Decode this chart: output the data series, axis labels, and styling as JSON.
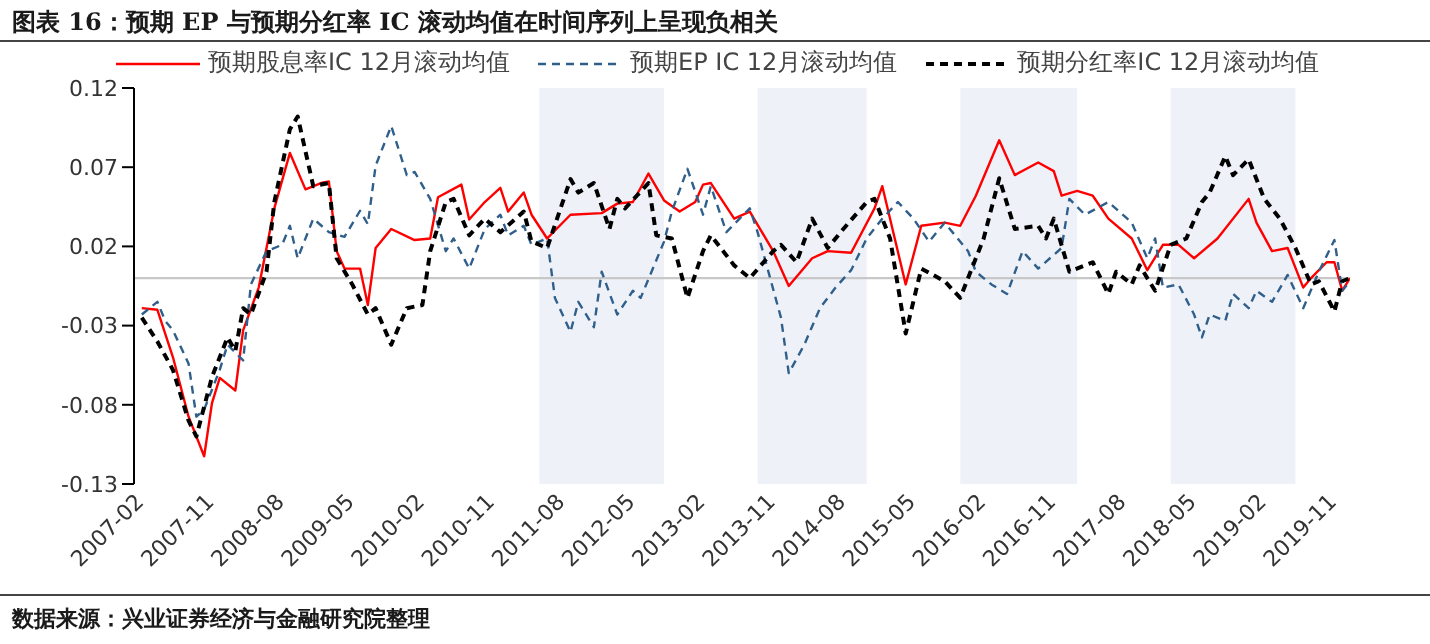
{
  "chart_data": {
    "type": "line",
    "title": "图表 16：预期 EP 与预期分红率 IC 滚动均值在时间序列上呈现负相关",
    "annotations": [
      "数据来源：兴业证券经济与金融研究院整理"
    ],
    "xlim": [
      "2007-02",
      "2020-02"
    ],
    "xticks": [
      "2007-02",
      "2007-11",
      "2008-08",
      "2009-05",
      "2010-02",
      "2010-11",
      "2011-08",
      "2012-05",
      "2013-02",
      "2013-11",
      "2014-08",
      "2015-05",
      "2016-02",
      "2016-11",
      "2017-08",
      "2018-05",
      "2019-02",
      "2019-11"
    ],
    "ylim": [
      -0.13,
      0.12
    ],
    "yticks": [
      -0.13,
      -0.08,
      -0.03,
      0.02,
      0.07,
      0.12
    ],
    "grid": false,
    "legend": "top",
    "marker": "none",
    "ref_lines": [
      {
        "axis": "y",
        "value": 0,
        "color": "#c8c8c8"
      }
    ],
    "bands": [
      {
        "axis": "x",
        "from": "2011-06",
        "to": "2012-10",
        "color": "#eef2f8"
      },
      {
        "axis": "x",
        "from": "2013-10",
        "to": "2014-12",
        "color": "#eef2f8"
      },
      {
        "axis": "x",
        "from": "2015-12",
        "to": "2017-03",
        "color": "#eef2f8"
      },
      {
        "axis": "x",
        "from": "2018-03",
        "to": "2019-07",
        "color": "#eef2f8"
      }
    ],
    "series": [
      {
        "name": "预期股息率IC 12月滚动均值",
        "color": "#ff0000",
        "line_style": "solid",
        "x": [
          "2007-03",
          "2007-05",
          "2007-07",
          "2007-09",
          "2007-11",
          "2007-12",
          "2008-01",
          "2008-03",
          "2008-04",
          "2008-06",
          "2008-08",
          "2008-10",
          "2008-12",
          "2009-02",
          "2009-03",
          "2009-04",
          "2009-05",
          "2009-07",
          "2009-08",
          "2009-09",
          "2009-11",
          "2010-02",
          "2010-04",
          "2010-05",
          "2010-08",
          "2010-09",
          "2010-11",
          "2011-01",
          "2011-02",
          "2011-04",
          "2011-05",
          "2011-07",
          "2011-10",
          "2012-02",
          "2012-04",
          "2012-06",
          "2012-08",
          "2012-10",
          "2012-12",
          "2013-02",
          "2013-03",
          "2013-04",
          "2013-07",
          "2013-09",
          "2013-12",
          "2014-02",
          "2014-05",
          "2014-07",
          "2014-10",
          "2015-01",
          "2015-02",
          "2015-05",
          "2015-07",
          "2015-10",
          "2015-12",
          "2016-02",
          "2016-05",
          "2016-07",
          "2016-10",
          "2016-12",
          "2017-01",
          "2017-03",
          "2017-05",
          "2017-07",
          "2017-10",
          "2017-12",
          "2018-02",
          "2018-04",
          "2018-06",
          "2018-09",
          "2019-01",
          "2019-02",
          "2019-04",
          "2019-06",
          "2019-08",
          "2019-09",
          "2019-11",
          "2019-12",
          "2020-01",
          "2020-02"
        ],
        "values": [
          -0.019,
          -0.02,
          -0.05,
          -0.0875,
          -0.1125,
          -0.079,
          -0.063,
          -0.071,
          -0.033,
          -0.006,
          0.044,
          0.079,
          0.056,
          0.06,
          0.061,
          0.017,
          0.006,
          0.006,
          -0.017,
          0.019,
          0.031,
          0.024,
          0.025,
          0.051,
          0.059,
          0.037,
          0.048,
          0.057,
          0.042,
          0.054,
          0.04,
          0.025,
          0.04,
          0.041,
          0.047,
          0.048,
          0.066,
          0.049,
          0.042,
          0.048,
          0.059,
          0.06,
          0.0375,
          0.042,
          0.017,
          -0.005,
          0.0125,
          0.017,
          0.016,
          0.044,
          0.058,
          -0.004,
          0.033,
          0.035,
          0.033,
          0.052,
          0.087,
          0.065,
          0.073,
          0.0675,
          0.052,
          0.055,
          0.052,
          0.0375,
          0.025,
          0.005,
          0.021,
          0.021,
          0.0125,
          0.025,
          0.05,
          0.035,
          0.017,
          0.019,
          -0.006,
          0,
          0.01,
          0.01,
          -0.008,
          0
        ]
      },
      {
        "name": "预期EP IC 12月滚动均值",
        "color": "#2f5f8a",
        "line_style": "dashed",
        "x": [
          "2007-03",
          "2007-05",
          "2007-06",
          "2007-07",
          "2007-09",
          "2007-10",
          "2007-11",
          "2008-01",
          "2008-02",
          "2008-04",
          "2008-05",
          "2008-07",
          "2008-09",
          "2008-10",
          "2008-11",
          "2009-01",
          "2009-03",
          "2009-05",
          "2009-07",
          "2009-08",
          "2009-09",
          "2009-11",
          "2010-01",
          "2010-02",
          "2010-04",
          "2010-06",
          "2010-07",
          "2010-09",
          "2010-11",
          "2011-01",
          "2011-02",
          "2011-04",
          "2011-05",
          "2011-07",
          "2011-08",
          "2011-10",
          "2011-11",
          "2012-01",
          "2012-02",
          "2012-04",
          "2012-06",
          "2012-07",
          "2012-10",
          "2012-11",
          "2013-01",
          "2013-03",
          "2013-04",
          "2013-06",
          "2013-09",
          "2013-10",
          "2014-01",
          "2014-02",
          "2014-04",
          "2014-06",
          "2014-08",
          "2014-10",
          "2014-12",
          "2015-02",
          "2015-04",
          "2015-06",
          "2015-08",
          "2015-10",
          "2016-01",
          "2016-02",
          "2016-04",
          "2016-06",
          "2016-08",
          "2016-10",
          "2017-01",
          "2017-02",
          "2017-04",
          "2017-07",
          "2017-10",
          "2017-12",
          "2018-01",
          "2018-02",
          "2018-04",
          "2018-06",
          "2018-07",
          "2018-08",
          "2018-10",
          "2018-11",
          "2019-01",
          "2019-02",
          "2019-04",
          "2019-06",
          "2019-08",
          "2019-10",
          "2019-12",
          "2020-01",
          "2020-02"
        ],
        "values": [
          -0.023,
          -0.015,
          -0.027,
          -0.033,
          -0.054,
          -0.0875,
          -0.083,
          -0.058,
          -0.042,
          -0.052,
          -0.004,
          0.017,
          0.021,
          0.033,
          0.0125,
          0.0375,
          0.029,
          0.026,
          0.0425,
          0.034,
          0.071,
          0.096,
          0.065,
          0.067,
          0.05,
          0.017,
          0.025,
          0.006,
          0.031,
          0.04,
          0.027,
          0.033,
          0.021,
          0.025,
          -0.0125,
          -0.034,
          -0.015,
          -0.031,
          0.004,
          -0.023,
          -0.008,
          -0.0125,
          0.023,
          0.042,
          0.069,
          0.04,
          0.058,
          0.029,
          0.044,
          0.029,
          -0.025,
          -0.06,
          -0.042,
          -0.019,
          -0.006,
          0.005,
          0.025,
          0.0375,
          0.048,
          0.0375,
          0.023,
          0.035,
          0.017,
          0.004,
          -0.004,
          -0.01,
          0.017,
          0.006,
          0.019,
          0.05,
          0.04,
          0.048,
          0.035,
          0.0125,
          0.025,
          -0.006,
          -0.004,
          -0.023,
          -0.0375,
          -0.023,
          -0.027,
          -0.01,
          -0.019,
          -0.008,
          -0.015,
          0.002,
          -0.019,
          0.004,
          0.024,
          -0.008,
          -0.002
        ]
      },
      {
        "name": "预期分红率IC 12月滚动均值",
        "color": "#000000",
        "line_style": "dashed",
        "x": [
          "2007-03",
          "2007-05",
          "2007-07",
          "2007-09",
          "2007-10",
          "2007-12",
          "2008-02",
          "2008-03",
          "2008-04",
          "2008-05",
          "2008-07",
          "2008-08",
          "2008-10",
          "2008-11",
          "2009-01",
          "2009-03",
          "2009-04",
          "2009-06",
          "2009-08",
          "2009-09",
          "2009-11",
          "2010-01",
          "2010-03",
          "2010-04",
          "2010-06",
          "2010-07",
          "2010-09",
          "2010-11",
          "2011-01",
          "2011-04",
          "2011-05",
          "2011-07",
          "2011-10",
          "2011-11",
          "2012-01",
          "2012-03",
          "2012-04",
          "2012-05",
          "2012-08",
          "2012-09",
          "2012-11",
          "2013-01",
          "2013-03",
          "2013-04",
          "2013-07",
          "2013-09",
          "2013-12",
          "2014-01",
          "2014-03",
          "2014-05",
          "2014-07",
          "2014-09",
          "2014-12",
          "2015-01",
          "2015-03",
          "2015-05",
          "2015-07",
          "2015-10",
          "2015-12",
          "2016-02",
          "2016-03",
          "2016-05",
          "2016-07",
          "2016-10",
          "2016-11",
          "2016-12",
          "2017-02",
          "2017-05",
          "2017-07",
          "2017-08",
          "2017-10",
          "2017-11",
          "2018-01",
          "2018-03",
          "2018-05",
          "2018-07",
          "2018-08",
          "2018-10",
          "2018-11",
          "2019-01",
          "2019-03",
          "2019-05",
          "2019-07",
          "2019-09",
          "2019-10",
          "2019-12",
          "2020-01",
          "2020-02"
        ],
        "values": [
          -0.025,
          -0.04,
          -0.058,
          -0.09,
          -0.1,
          -0.0625,
          -0.0375,
          -0.046,
          -0.019,
          -0.023,
          0.004,
          0.048,
          0.094,
          0.102,
          0.058,
          0.06,
          0.0125,
          -0.004,
          -0.023,
          -0.019,
          -0.042,
          -0.019,
          -0.017,
          0.017,
          0.048,
          0.05,
          0.027,
          0.0375,
          0.029,
          0.042,
          0.023,
          0.019,
          0.0625,
          0.054,
          0.06,
          0.031,
          0.05,
          0.044,
          0.06,
          0.027,
          0.025,
          -0.0125,
          0.017,
          0.027,
          0.008,
          0,
          0.017,
          0.021,
          0.01,
          0.0375,
          0.019,
          0.031,
          0.048,
          0.05,
          0.025,
          -0.035,
          0.006,
          -0.002,
          -0.0125,
          0.0125,
          0.025,
          0.063,
          0.031,
          0.033,
          0.025,
          0.0375,
          0.004,
          0.01,
          -0.01,
          0.004,
          -0.004,
          0.008,
          -0.008,
          0.021,
          0.025,
          0.048,
          0.054,
          0.077,
          0.065,
          0.075,
          0.05,
          0.0375,
          0.019,
          -0.004,
          -0.002,
          -0.021,
          -0.002,
          0
        ]
      }
    ]
  }
}
